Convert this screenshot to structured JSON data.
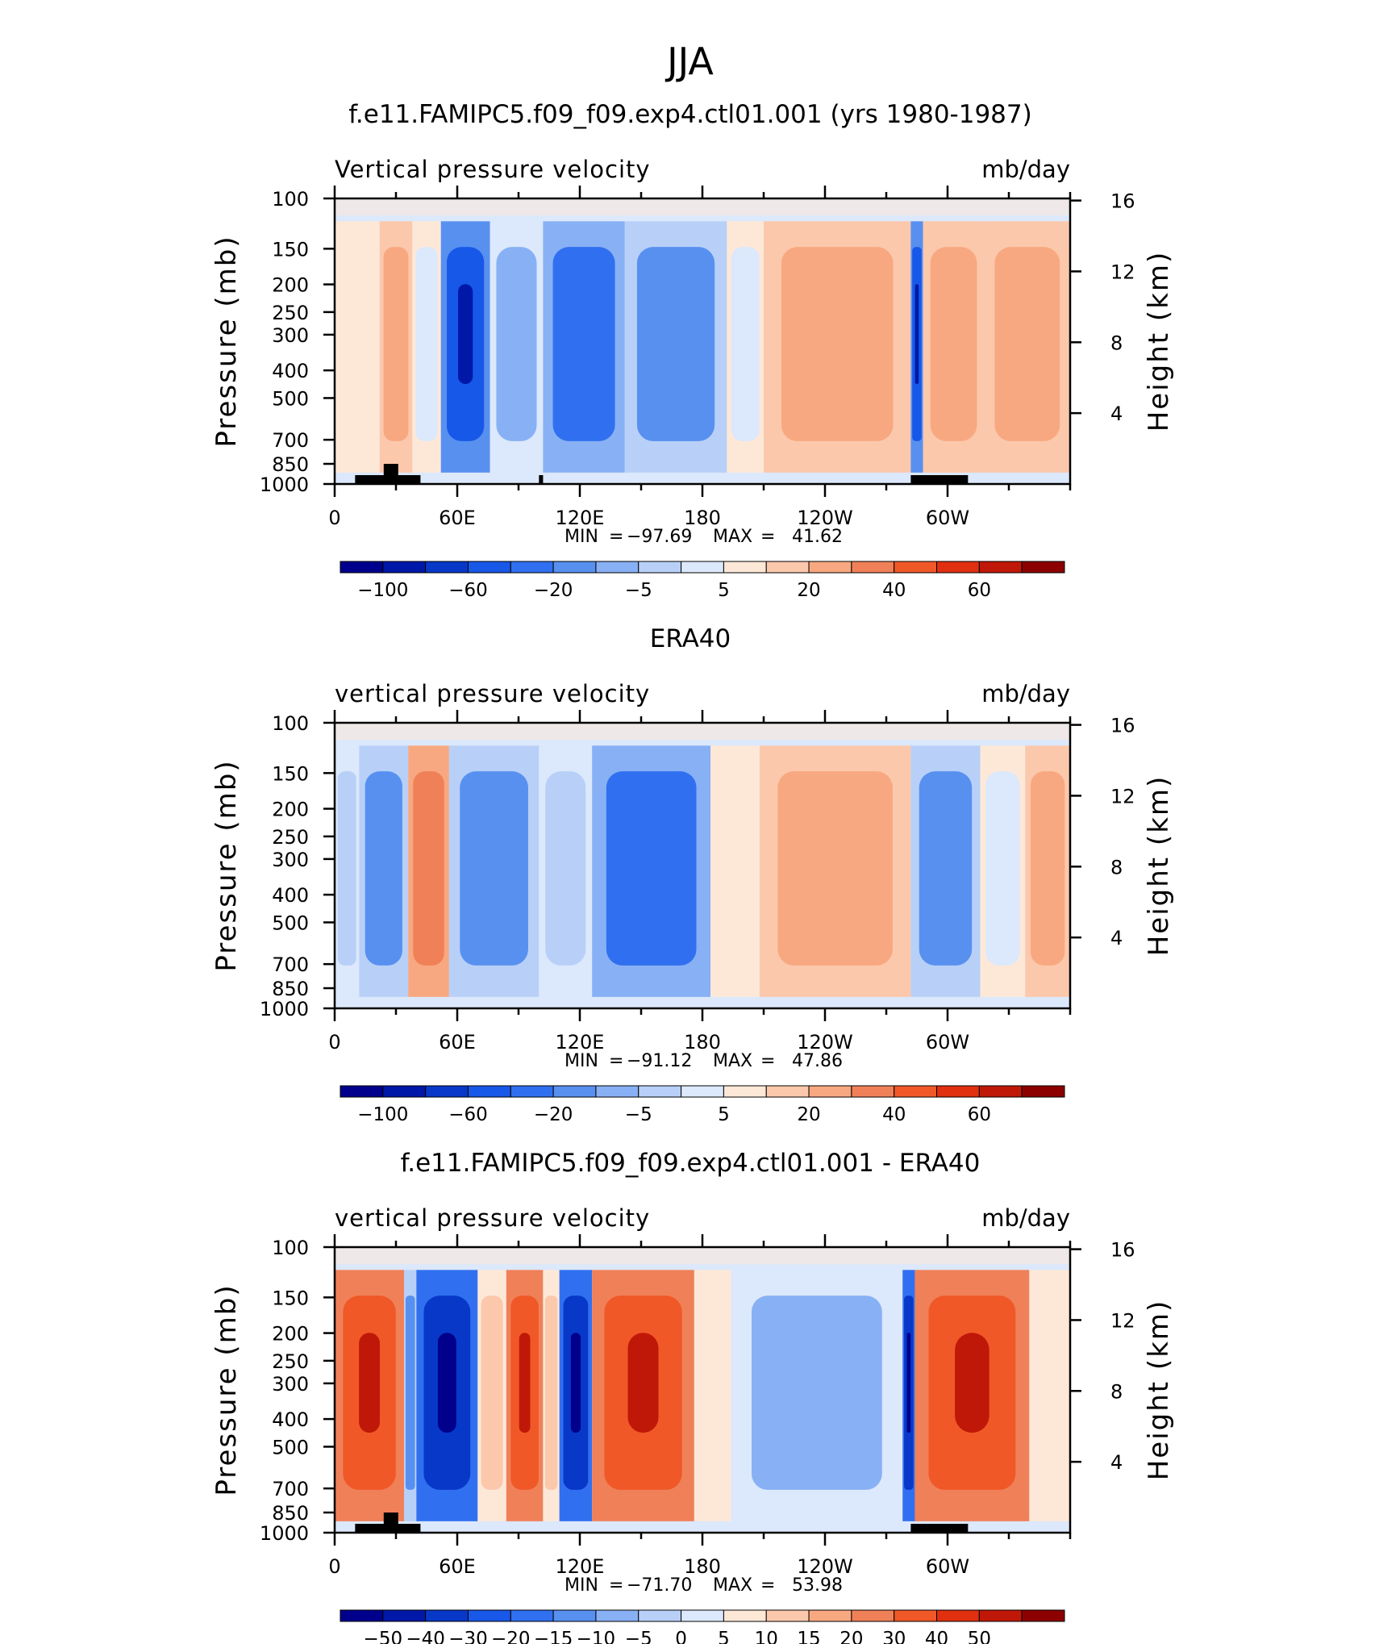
{
  "page_title": "JJA",
  "chart_data": [
    {
      "type": "heatmap",
      "title": "f.e11.FAMIPC5.f09_f09.exp4.ctl01.001 (yrs 1980-1987)",
      "subtitle_left": "Vertical pressure velocity",
      "subtitle_right": "mb/day",
      "ylabel": "Pressure (mb)",
      "ylabel_right": "Height (km)",
      "yticks": [
        "100",
        "150",
        "200",
        "250",
        "300",
        "400",
        "500",
        "700",
        "850",
        "1000"
      ],
      "yticks_right": [
        "16",
        "12",
        "8",
        "4"
      ],
      "xticks": [
        "0",
        "60E",
        "120E",
        "180",
        "120W",
        "60W"
      ],
      "stats": {
        "min_label": "MIN",
        "min_value": "-97.69",
        "max_label": "MAX",
        "max_value": "41.62"
      },
      "colorbar_labels": [
        "-100",
        "-60",
        "-20",
        "-5",
        "5",
        "20",
        "40",
        "60"
      ],
      "colorbar_colors": [
        "#00008c",
        "#0018a8",
        "#0838c8",
        "#1858e8",
        "#3070f0",
        "#5890f0",
        "#88b0f4",
        "#b8d0f8",
        "#dce8fb",
        "#fde8d8",
        "#fcc8ac",
        "#f8a880",
        "#f08058",
        "#f05828",
        "#e03010",
        "#c01808",
        "#8c0000"
      ],
      "ylim": [
        1000,
        100
      ],
      "xlim": [
        "0",
        "360"
      ],
      "bands": [
        {
          "x": 0,
          "w": 22,
          "c": 9
        },
        {
          "x": 22,
          "w": 16,
          "c": 11
        },
        {
          "x": 38,
          "w": 14,
          "c": 8
        },
        {
          "x": 52,
          "w": 24,
          "c": 3
        },
        {
          "x": 76,
          "w": 26,
          "c": 6
        },
        {
          "x": 102,
          "w": 40,
          "c": 4
        },
        {
          "x": 142,
          "w": 50,
          "c": 5
        },
        {
          "x": 192,
          "w": 18,
          "c": 8
        },
        {
          "x": 210,
          "w": 72,
          "c": 11
        },
        {
          "x": 282,
          "w": 6,
          "c": 3
        },
        {
          "x": 288,
          "w": 30,
          "c": 11
        },
        {
          "x": 318,
          "w": 42,
          "c": 11
        }
      ],
      "land": [
        [
          10,
          42
        ],
        [
          282,
          310
        ],
        [
          100,
          102
        ]
      ]
    },
    {
      "type": "heatmap",
      "title": "ERA40",
      "subtitle_left": "vertical pressure velocity",
      "subtitle_right": "mb/day",
      "ylabel": "Pressure (mb)",
      "ylabel_right": "Height (km)",
      "yticks": [
        "100",
        "150",
        "200",
        "250",
        "300",
        "400",
        "500",
        "700",
        "850",
        "1000"
      ],
      "yticks_right": [
        "16",
        "12",
        "8",
        "4"
      ],
      "xticks": [
        "0",
        "60E",
        "120E",
        "180",
        "120W",
        "60W"
      ],
      "stats": {
        "min_label": "MIN",
        "min_value": "-91.12",
        "max_label": "MAX",
        "max_value": "47.86"
      },
      "colorbar_labels": [
        "-100",
        "-60",
        "-20",
        "-5",
        "5",
        "20",
        "40",
        "60"
      ],
      "colorbar_colors": [
        "#00008c",
        "#0018a8",
        "#0838c8",
        "#1858e8",
        "#3070f0",
        "#5890f0",
        "#88b0f4",
        "#b8d0f8",
        "#dce8fb",
        "#fde8d8",
        "#fcc8ac",
        "#f8a880",
        "#f08058",
        "#f05828",
        "#e03010",
        "#c01808",
        "#8c0000"
      ],
      "ylim": [
        1000,
        100
      ],
      "xlim": [
        "0",
        "360"
      ],
      "bands": [
        {
          "x": 0,
          "w": 12,
          "c": 7
        },
        {
          "x": 12,
          "w": 24,
          "c": 5
        },
        {
          "x": 36,
          "w": 20,
          "c": 12
        },
        {
          "x": 56,
          "w": 44,
          "c": 5
        },
        {
          "x": 100,
          "w": 26,
          "c": 7
        },
        {
          "x": 126,
          "w": 58,
          "c": 4
        },
        {
          "x": 184,
          "w": 24,
          "c": 9
        },
        {
          "x": 208,
          "w": 74,
          "c": 11
        },
        {
          "x": 282,
          "w": 34,
          "c": 5
        },
        {
          "x": 316,
          "w": 22,
          "c": 8
        },
        {
          "x": 338,
          "w": 22,
          "c": 11
        }
      ],
      "land": []
    },
    {
      "type": "heatmap",
      "title": "f.e11.FAMIPC5.f09_f09.exp4.ctl01.001 - ERA40",
      "subtitle_left": "vertical pressure velocity",
      "subtitle_right": "mb/day",
      "ylabel": "Pressure (mb)",
      "ylabel_right": "Height (km)",
      "yticks": [
        "100",
        "150",
        "200",
        "250",
        "300",
        "400",
        "500",
        "700",
        "850",
        "1000"
      ],
      "yticks_right": [
        "16",
        "12",
        "8",
        "4"
      ],
      "xticks": [
        "0",
        "60E",
        "120E",
        "180",
        "120W",
        "60W"
      ],
      "stats": {
        "min_label": "MIN",
        "min_value": "-71.70",
        "max_label": "MAX",
        "max_value": "53.98"
      },
      "colorbar_labels": [
        "-50",
        "-40",
        "-30",
        "-20",
        "-15",
        "-10",
        "-5",
        "0",
        "5",
        "10",
        "15",
        "20",
        "30",
        "40",
        "50"
      ],
      "colorbar_colors": [
        "#00008c",
        "#0018a8",
        "#0838c8",
        "#1858e8",
        "#3070f0",
        "#5890f0",
        "#88b0f4",
        "#b8d0f8",
        "#dce8fb",
        "#fde8d8",
        "#fcc8ac",
        "#f8a880",
        "#f08058",
        "#f05828",
        "#e03010",
        "#c01808",
        "#8c0000"
      ],
      "ylim": [
        1000,
        100
      ],
      "xlim": [
        "0",
        "360"
      ],
      "bands": [
        {
          "x": 0,
          "w": 34,
          "c": 13
        },
        {
          "x": 34,
          "w": 6,
          "c": 5
        },
        {
          "x": 40,
          "w": 30,
          "c": 2
        },
        {
          "x": 70,
          "w": 14,
          "c": 10
        },
        {
          "x": 84,
          "w": 18,
          "c": 13
        },
        {
          "x": 102,
          "w": 8,
          "c": 10
        },
        {
          "x": 110,
          "w": 16,
          "c": 2
        },
        {
          "x": 126,
          "w": 50,
          "c": 13
        },
        {
          "x": 176,
          "w": 18,
          "c": 9
        },
        {
          "x": 194,
          "w": 84,
          "c": 6
        },
        {
          "x": 278,
          "w": 6,
          "c": 2
        },
        {
          "x": 284,
          "w": 56,
          "c": 13
        },
        {
          "x": 340,
          "w": 20,
          "c": 9
        }
      ],
      "land": [
        [
          10,
          42
        ],
        [
          282,
          310
        ]
      ]
    }
  ]
}
